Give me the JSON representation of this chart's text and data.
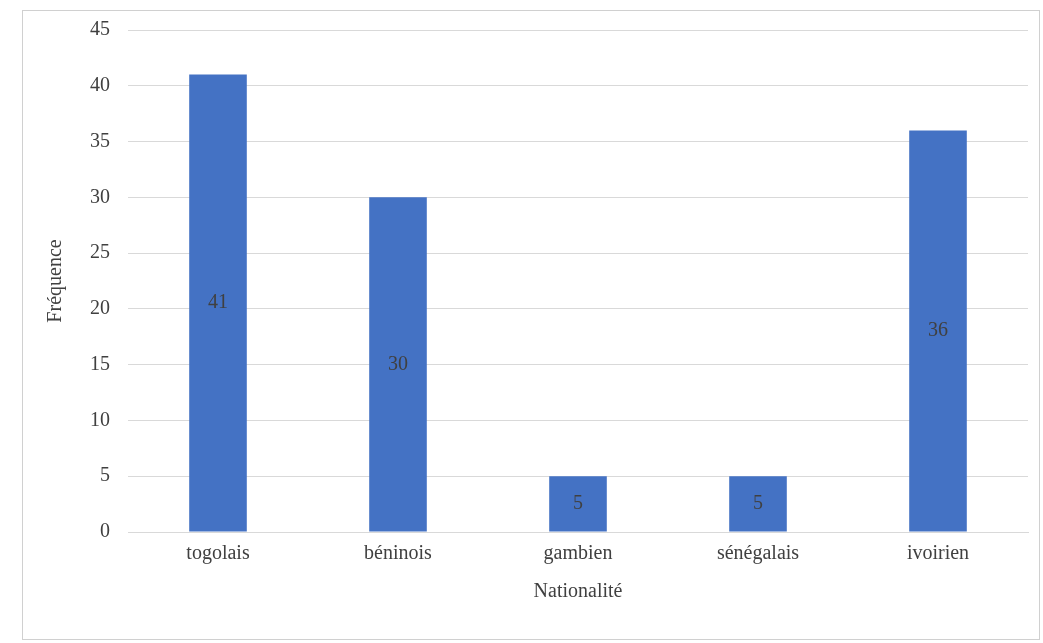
{
  "chart_data": {
    "type": "bar",
    "xlabel": "Nationalité",
    "ylabel": "Fréquence",
    "categories": [
      "togolais",
      "béninois",
      "gambien",
      "sénégalais",
      "ivoirien"
    ],
    "values": [
      41,
      30,
      5,
      5,
      36
    ],
    "color": "#4472c4",
    "ylim": [
      0,
      45
    ],
    "yticks": [
      0,
      5,
      10,
      15,
      20,
      25,
      30,
      35,
      40,
      45
    ],
    "grid": "y",
    "data_labels": true,
    "legend": false
  }
}
